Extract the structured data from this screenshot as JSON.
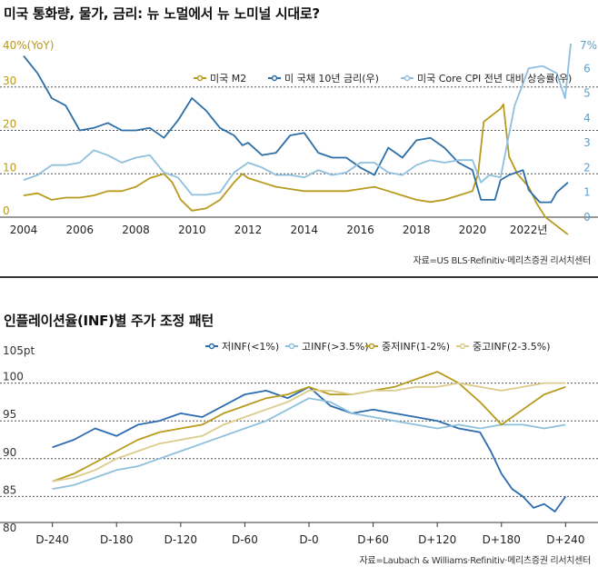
{
  "chart_data": [
    {
      "type": "line",
      "title": "미국 통화량, 물가, 금리: 뉴 노멀에서 뉴 노미널 시대로?",
      "left_axis_label": "40%(YoY)",
      "right_axis_label": "7%",
      "left_ylim": [
        0,
        40
      ],
      "right_ylim": [
        0,
        7
      ],
      "left_ticks": [
        "0",
        "10",
        "20",
        "30"
      ],
      "right_ticks": [
        "0",
        "1",
        "2",
        "3",
        "4",
        "5",
        "6"
      ],
      "x_ticks": [
        "2004",
        "2006",
        "2008",
        "2010",
        "2012",
        "2014",
        "2016",
        "2018",
        "2020",
        "2022년"
      ],
      "x_tick_values": [
        2004,
        2006,
        2008,
        2010,
        2012,
        2014,
        2016,
        2018,
        2020,
        2022
      ],
      "xlim": [
        2004,
        2023.5
      ],
      "grid_lines_left": [
        10,
        20,
        30
      ],
      "legend_position": "top-right",
      "series": [
        {
          "name": "미국 M2",
          "axis": "left",
          "color": "#b79a1e",
          "x": [
            2004,
            2004.5,
            2005,
            2005.5,
            2006,
            2006.5,
            2007,
            2007.5,
            2008,
            2008.5,
            2009,
            2009.3,
            2009.6,
            2010,
            2010.5,
            2011,
            2011.5,
            2011.8,
            2012,
            2012.5,
            2013,
            2013.5,
            2014,
            2014.5,
            2015,
            2015.5,
            2016,
            2016.5,
            2017,
            2017.5,
            2018,
            2018.5,
            2019,
            2019.5,
            2020,
            2020.2,
            2020.4,
            2020.8,
            2021,
            2021.1,
            2021.3,
            2021.6,
            2022,
            2022.3,
            2022.6,
            2023,
            2023.4
          ],
          "values": [
            5,
            5.5,
            4,
            4.5,
            4.5,
            5,
            6,
            6,
            7,
            9,
            10,
            8,
            4,
            1.5,
            2,
            4,
            8,
            10,
            9,
            8,
            7,
            6.5,
            6,
            6,
            6,
            6,
            6.5,
            7,
            6,
            5,
            4,
            3.5,
            4,
            5,
            6,
            10,
            22,
            24,
            25,
            26,
            14,
            10,
            7,
            3,
            0,
            -2,
            -4
          ]
        },
        {
          "name": "미 국채 10년 금리(우)",
          "axis": "right",
          "color": "#2c6ea6",
          "x": [
            2004,
            2004.5,
            2005,
            2005.5,
            2006,
            2006.5,
            2007,
            2007.5,
            2008,
            2008.5,
            2009,
            2009.5,
            2010,
            2010.5,
            2011,
            2011.5,
            2011.8,
            2012,
            2012.5,
            2013,
            2013.5,
            2014,
            2014.5,
            2015,
            2015.5,
            2016,
            2016.5,
            2017,
            2017.5,
            2018,
            2018.5,
            2019,
            2019.5,
            2020,
            2020.3,
            2020.8,
            2021,
            2021.3,
            2021.8,
            2022,
            2022.4,
            2022.8,
            2023,
            2023.4
          ],
          "values": [
            6.5,
            5.8,
            4.8,
            4.5,
            3.5,
            3.6,
            3.8,
            3.5,
            3.5,
            3.6,
            3.2,
            3.9,
            4.8,
            4.3,
            3.6,
            3.3,
            2.9,
            3.0,
            2.5,
            2.6,
            3.3,
            3.4,
            2.6,
            2.4,
            2.4,
            2.0,
            1.7,
            2.8,
            2.4,
            3.1,
            3.2,
            2.8,
            2.2,
            1.9,
            0.7,
            0.7,
            1.5,
            1.7,
            1.9,
            1.1,
            0.6,
            0.6,
            1.0,
            1.4
          ]
        },
        {
          "name": "미국 Core CPI 전년 대비 상승률(우)",
          "axis": "right",
          "color": "#8fbfde",
          "x": [
            2004,
            2004.5,
            2005,
            2005.5,
            2006,
            2006.5,
            2007,
            2007.5,
            2008,
            2008.5,
            2009,
            2009.5,
            2010,
            2010.5,
            2011,
            2011.5,
            2012,
            2012.5,
            2013,
            2013.5,
            2014,
            2014.5,
            2015,
            2015.5,
            2016,
            2016.5,
            2017,
            2017.5,
            2018,
            2018.5,
            2019,
            2019.5,
            2020,
            2020.3,
            2020.6,
            2021,
            2021.5,
            2022,
            2022.5,
            2023,
            2023.3,
            2023.5
          ],
          "values": [
            1.5,
            1.7,
            2.1,
            2.1,
            2.2,
            2.7,
            2.5,
            2.2,
            2.4,
            2.5,
            1.8,
            1.6,
            0.9,
            0.9,
            1.0,
            1.8,
            2.2,
            2.0,
            1.7,
            1.7,
            1.6,
            1.9,
            1.7,
            1.8,
            2.2,
            2.2,
            1.8,
            1.7,
            2.1,
            2.3,
            2.2,
            2.3,
            2.3,
            1.4,
            1.7,
            1.6,
            4.5,
            6.0,
            6.1,
            5.8,
            4.8,
            7.0
          ]
        }
      ],
      "source": "자료=US BLS·Refinitiv·메리츠증권 리서치센터"
    },
    {
      "type": "line",
      "title": "인플레이션율(INF)별 주가 조정 패턴",
      "y_axis_label": "105pt",
      "ylim": [
        80,
        105
      ],
      "y_ticks": [
        "80",
        "85",
        "90",
        "95",
        "100"
      ],
      "x_ticks": [
        "D-240",
        "D-180",
        "D-120",
        "D-60",
        "D-0",
        "D+60",
        "D+120",
        "D+180",
        "D+240"
      ],
      "x_tick_values": [
        -240,
        -180,
        -120,
        -60,
        0,
        60,
        120,
        180,
        240
      ],
      "xlim": [
        -255,
        255
      ],
      "grid_lines": [
        85,
        90,
        95,
        100
      ],
      "legend_position": "top-right",
      "series": [
        {
          "name": "저INF(<1%)",
          "color": "#2a6bb0",
          "x": [
            -240,
            -220,
            -200,
            -180,
            -160,
            -140,
            -120,
            -100,
            -80,
            -60,
            -40,
            -20,
            0,
            20,
            40,
            60,
            80,
            100,
            120,
            140,
            160,
            170,
            180,
            190,
            200,
            210,
            220,
            230,
            240
          ],
          "values": [
            91.5,
            92.5,
            94,
            93,
            94.5,
            95,
            96,
            95.5,
            97,
            98.5,
            99,
            98,
            99.5,
            97,
            96,
            96.5,
            96,
            95.5,
            95,
            94,
            93.5,
            91,
            88,
            86,
            85,
            83.5,
            84,
            83,
            85
          ]
        },
        {
          "name": "고INF(>3.5%)",
          "color": "#8ec0de",
          "x": [
            -240,
            -220,
            -200,
            -180,
            -160,
            -140,
            -120,
            -100,
            -80,
            -60,
            -40,
            -20,
            0,
            20,
            40,
            60,
            80,
            100,
            120,
            140,
            160,
            180,
            200,
            220,
            240
          ],
          "values": [
            86,
            86.5,
            87.5,
            88.5,
            89,
            90,
            91,
            92,
            93,
            94,
            95,
            96.5,
            98,
            97.5,
            96,
            95.5,
            95,
            94.5,
            94,
            94.5,
            94,
            94.5,
            94.5,
            94,
            94.5
          ]
        },
        {
          "name": "중저INF(1-2%)",
          "color": "#b89a1c",
          "x": [
            -240,
            -220,
            -200,
            -180,
            -160,
            -140,
            -120,
            -100,
            -80,
            -60,
            -40,
            -20,
            0,
            20,
            40,
            60,
            80,
            100,
            120,
            140,
            160,
            180,
            200,
            220,
            240
          ],
          "values": [
            87,
            88,
            89.5,
            91,
            92.5,
            93.5,
            94,
            94.5,
            96,
            97,
            98,
            98.5,
            99.5,
            98.5,
            98.5,
            99,
            99.5,
            100.5,
            101.5,
            100,
            97.5,
            94.5,
            96.5,
            98.5,
            99.5
          ]
        },
        {
          "name": "중고INF(2-3.5%)",
          "color": "#dccb8c",
          "x": [
            -240,
            -220,
            -200,
            -180,
            -160,
            -140,
            -120,
            -100,
            -80,
            -60,
            -40,
            -20,
            0,
            20,
            40,
            60,
            80,
            100,
            120,
            140,
            160,
            180,
            200,
            220,
            240
          ],
          "values": [
            87,
            87.5,
            88.5,
            90,
            91,
            92,
            92.5,
            93,
            94.5,
            95.5,
            96.5,
            97.5,
            99,
            99,
            98.5,
            99,
            99,
            99.5,
            99.5,
            100,
            99.5,
            99,
            99.5,
            100,
            100
          ]
        }
      ],
      "source": "자료=Laubach & Williams·Refinitiv·메리츠증권 리서치센터"
    }
  ]
}
